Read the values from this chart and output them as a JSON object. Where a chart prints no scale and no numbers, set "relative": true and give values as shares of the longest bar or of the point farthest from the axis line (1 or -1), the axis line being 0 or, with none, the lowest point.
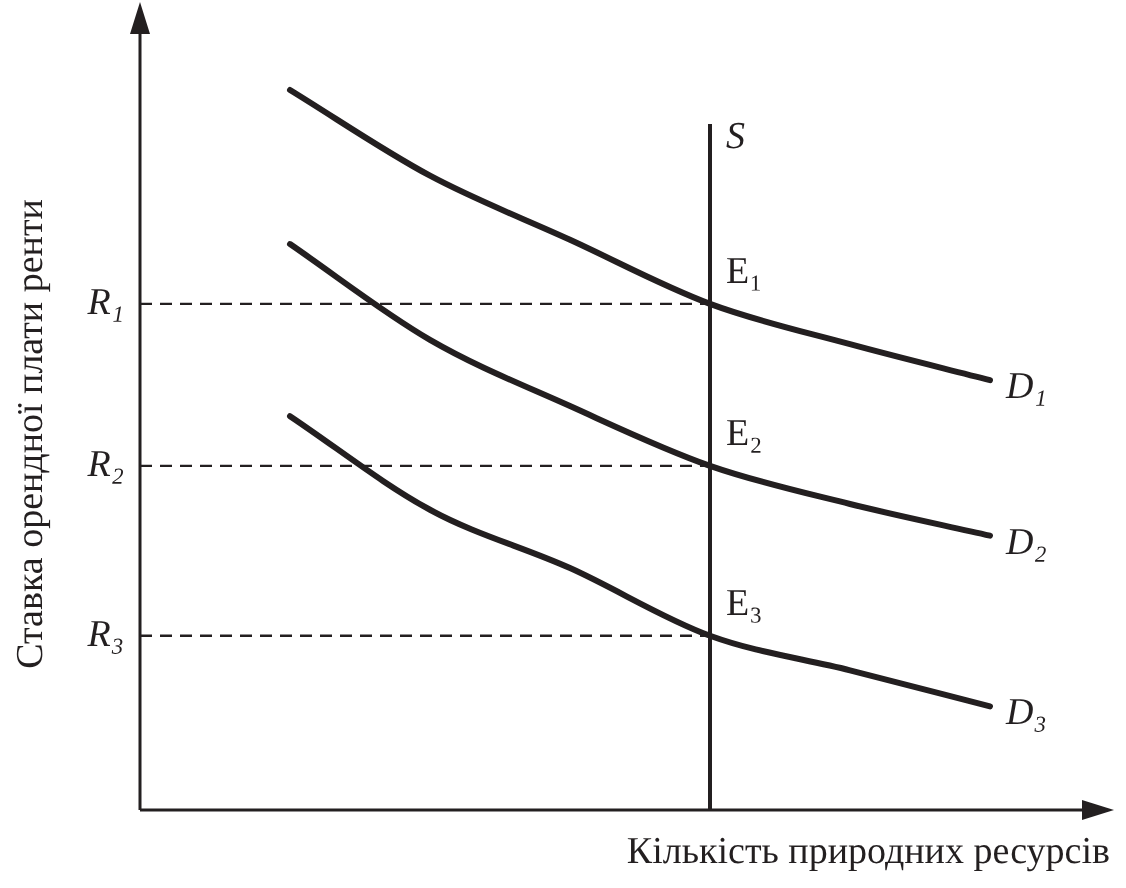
{
  "chart_data": {
    "type": "line",
    "relative": true,
    "grid": false,
    "legend": false,
    "marker": "none",
    "line_style": "solid",
    "xlabel": "Кількість природних ресурсів",
    "ylabel": "Ставка орендної плати ренти",
    "categories": [
      null,
      null,
      null,
      null,
      null,
      null
    ],
    "series": [
      {
        "name": "D₁",
        "color": "#231f20",
        "values": [
          1,
          0.881,
          0.792,
          0.703,
          0.647,
          0.597
        ]
      },
      {
        "name": "D₂",
        "color": "#231f20",
        "values": [
          0.786,
          0.653,
          0.561,
          0.478,
          0.425,
          0.381
        ]
      },
      {
        "name": "D₃",
        "color": "#231f20",
        "values": [
          0.547,
          0.417,
          0.336,
          0.242,
          0.194,
          0.144
        ]
      }
    ],
    "ref_lines": [
      {
        "axis": "y",
        "value": 0.703,
        "label": "R₁",
        "color": "#231f20",
        "line_style": "dashed"
      },
      {
        "axis": "y",
        "value": 0.478,
        "label": "R₂",
        "color": "#231f20",
        "line_style": "dashed"
      },
      {
        "axis": "y",
        "value": 0.242,
        "label": "R₃",
        "color": "#231f20",
        "line_style": "dashed"
      }
    ],
    "annotations": [
      "S",
      {
        "text": "E₁",
        "y": 0.703
      },
      {
        "text": "E₂",
        "y": 0.478
      },
      {
        "text": "E₃",
        "y": 0.242
      }
    ]
  }
}
